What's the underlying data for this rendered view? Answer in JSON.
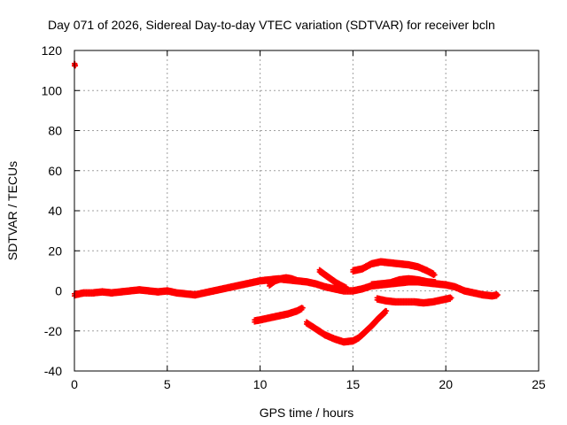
{
  "chart_data": {
    "type": "scatter",
    "title": "Day 071 of 2026, Sidereal Day-to-day VTEC variation (SDTVAR) for receiver bcln",
    "xlabel": "GPS time / hours",
    "ylabel": "SDTVAR / TECUs",
    "xlim": [
      0,
      25
    ],
    "ylim": [
      -40,
      120
    ],
    "xticks": [
      0,
      5,
      10,
      15,
      20,
      25
    ],
    "yticks": [
      -40,
      -20,
      0,
      20,
      40,
      60,
      80,
      100,
      120
    ],
    "xtick_labels": [
      "0",
      "5",
      "10",
      "15",
      "20",
      "25"
    ],
    "ytick_labels": [
      "-40",
      "-20",
      "0",
      "20",
      "40",
      "60",
      "80",
      "100",
      "120"
    ],
    "grid": true,
    "color": "#ff0000",
    "marker": "plus",
    "series": [
      {
        "name": "outlier",
        "x": [
          0.0,
          0.05
        ],
        "y": [
          113,
          112.5
        ]
      },
      {
        "name": "track-main",
        "x": [
          0.0,
          0.5,
          1,
          1.5,
          2,
          2.5,
          3,
          3.5,
          4,
          4.5,
          5,
          5.5,
          6,
          6.5,
          7,
          7.5,
          8,
          8.5,
          9,
          9.5,
          10,
          10.5,
          11,
          11.5,
          12,
          12.5,
          13,
          13.5,
          14,
          14.5,
          15,
          15.5,
          16,
          16.5,
          17,
          17.5,
          18,
          18.5,
          19,
          19.5,
          20,
          20.5,
          21,
          21.5,
          22,
          22.5,
          22.8
        ],
        "y": [
          -2,
          -1,
          -1,
          -0.5,
          -1,
          -0.5,
          0,
          0.5,
          0,
          -0.5,
          0,
          -1,
          -1.5,
          -2,
          -1,
          0,
          1,
          2,
          3,
          4,
          5,
          5.5,
          6,
          5.5,
          5,
          4.5,
          3.5,
          2,
          1,
          0,
          0,
          1,
          2.5,
          3,
          3.5,
          4,
          4.5,
          4.5,
          4,
          3.5,
          3,
          2,
          0,
          -1,
          -2,
          -2.5,
          -2
        ]
      },
      {
        "name": "track-mid-bump",
        "x": [
          10.5,
          10.8,
          11.1,
          11.4,
          11.7,
          12.0
        ],
        "y": [
          3,
          5,
          6,
          6.5,
          6,
          5
        ]
      },
      {
        "name": "track-low-early",
        "x": [
          9.7,
          10.0,
          10.5,
          11.0,
          11.5,
          12.0,
          12.3
        ],
        "y": [
          -15,
          -14.5,
          -13.5,
          -12.5,
          -11.5,
          -10,
          -8.5
        ]
      },
      {
        "name": "track-dip",
        "x": [
          12.5,
          13.0,
          13.5,
          14.0,
          14.5,
          15.0,
          15.3,
          15.6,
          16.0,
          16.4,
          16.8
        ],
        "y": [
          -16,
          -19,
          -22,
          -24,
          -25.5,
          -25,
          -23.5,
          -21,
          -17.5,
          -13.5,
          -10
        ]
      },
      {
        "name": "track-upper",
        "x": [
          15.0,
          15.5,
          16.0,
          16.5,
          17.0,
          17.5,
          18.0,
          18.5,
          19.0,
          19.4
        ],
        "y": [
          10,
          11,
          13.5,
          14.5,
          14,
          13.5,
          13,
          12,
          10,
          8
        ]
      },
      {
        "name": "track-descend",
        "x": [
          13.2,
          13.5,
          13.8,
          14.1,
          14.4,
          14.7
        ],
        "y": [
          10,
          8,
          6,
          4,
          2.5,
          1
        ]
      },
      {
        "name": "track-mid-pass",
        "x": [
          16.0,
          16.5,
          17.0,
          17.5,
          18.0,
          18.5,
          19.0,
          19.5
        ],
        "y": [
          3,
          3.5,
          4,
          5.5,
          6,
          5.5,
          4.5,
          4
        ]
      },
      {
        "name": "track-lower-right",
        "x": [
          16.3,
          16.8,
          17.3,
          17.8,
          18.3,
          18.8,
          19.3,
          19.8,
          20.3
        ],
        "y": [
          -4,
          -5,
          -5.5,
          -5.5,
          -5.5,
          -6,
          -5.5,
          -4.5,
          -3.5
        ]
      }
    ]
  }
}
